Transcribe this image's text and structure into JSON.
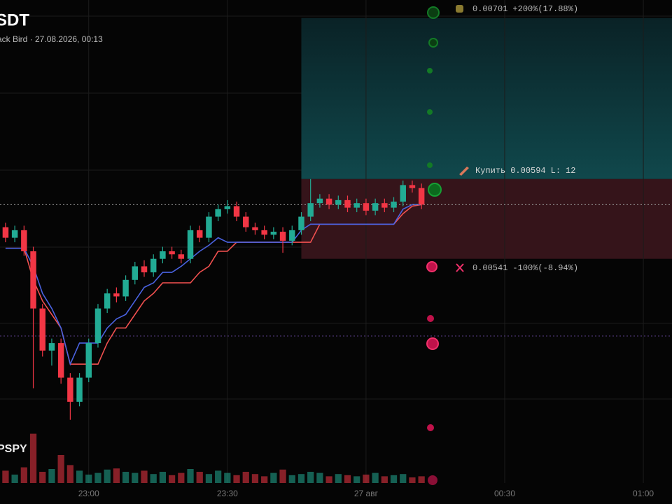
{
  "chart_data": {
    "type": "candlestick",
    "title": "SDT",
    "subtitle": "ack Bird · 27.08.2026, 00:13",
    "volume_label": "PSPY",
    "xlim": [
      -0.6,
      72.1
    ],
    "ylim": [
      0.00392,
      0.00713
    ],
    "xticks": [
      {
        "value": 9,
        "label": "23:00"
      },
      {
        "value": 24,
        "label": "23:30"
      },
      {
        "value": 39,
        "label": "27 авг"
      },
      {
        "value": 54,
        "label": "00:30"
      },
      {
        "value": 69,
        "label": "01:00"
      }
    ],
    "up_color": "#22ab94",
    "down_color": "#f23645",
    "open": [
      0.00562,
      0.00555,
      0.0056,
      0.00546,
      0.00508,
      0.0048,
      0.00485,
      0.00462,
      0.00446,
      0.00462,
      0.00485,
      0.00508,
      0.00518,
      0.00516,
      0.00527,
      0.00536,
      0.00532,
      0.00541,
      0.00546,
      0.00544,
      0.00541,
      0.0056,
      0.00555,
      0.00569,
      0.00574,
      0.00576,
      0.00569,
      0.00562,
      0.0056,
      0.00557,
      0.00559,
      0.00553,
      0.0056,
      0.00569,
      0.00578,
      0.00581,
      0.00577,
      0.0058,
      0.00575,
      0.00578,
      0.00573,
      0.00578,
      0.00575,
      0.00579,
      0.0059,
      0.00588
    ],
    "high": [
      0.00565,
      0.00563,
      0.00563,
      0.00549,
      0.00511,
      0.00488,
      0.00488,
      0.00465,
      0.00465,
      0.00488,
      0.00511,
      0.00521,
      0.00522,
      0.0053,
      0.00539,
      0.0054,
      0.00544,
      0.00549,
      0.00549,
      0.00547,
      0.00563,
      0.00563,
      0.00572,
      0.00577,
      0.0058,
      0.00579,
      0.00572,
      0.00565,
      0.00563,
      0.00562,
      0.00562,
      0.00563,
      0.00572,
      0.00594,
      0.00584,
      0.00584,
      0.00583,
      0.00583,
      0.00581,
      0.00581,
      0.00581,
      0.00581,
      0.00582,
      0.00593,
      0.00593,
      0.00591
    ],
    "low": [
      0.00552,
      0.00552,
      0.00543,
      0.00455,
      0.00476,
      0.0047,
      0.00458,
      0.00434,
      0.00443,
      0.00459,
      0.00482,
      0.00505,
      0.00512,
      0.00513,
      0.00524,
      0.00529,
      0.00529,
      0.00538,
      0.00541,
      0.00538,
      0.00538,
      0.00552,
      0.00552,
      0.00566,
      0.00571,
      0.00566,
      0.00559,
      0.00557,
      0.00554,
      0.00554,
      0.00545,
      0.0055,
      0.00557,
      0.00566,
      0.00575,
      0.00574,
      0.00574,
      0.00572,
      0.00572,
      0.0057,
      0.0057,
      0.00572,
      0.00572,
      0.00576,
      0.00585,
      0.00574
    ],
    "close": [
      0.00555,
      0.0056,
      0.00546,
      0.00508,
      0.0048,
      0.00485,
      0.00462,
      0.00446,
      0.00462,
      0.00485,
      0.00508,
      0.00518,
      0.00516,
      0.00527,
      0.00536,
      0.00532,
      0.00541,
      0.00546,
      0.00544,
      0.00541,
      0.0056,
      0.00555,
      0.00569,
      0.00574,
      0.00576,
      0.00569,
      0.00562,
      0.0056,
      0.00557,
      0.00559,
      0.00553,
      0.0056,
      0.00569,
      0.00578,
      0.00581,
      0.00577,
      0.0058,
      0.00575,
      0.00578,
      0.00573,
      0.00578,
      0.00575,
      0.00579,
      0.0059,
      0.00588,
      0.00577
    ],
    "volume": [
      22,
      15,
      28,
      88,
      20,
      25,
      50,
      32,
      22,
      15,
      18,
      24,
      26,
      20,
      18,
      22,
      16,
      20,
      14,
      18,
      25,
      20,
      16,
      22,
      18,
      14,
      20,
      16,
      12,
      18,
      24,
      14,
      16,
      20,
      18,
      12,
      16,
      14,
      12,
      15,
      18,
      12,
      14,
      16,
      10,
      12
    ],
    "volume_lim": [
      0,
      100
    ],
    "lines": [
      {
        "color": "#f0504f",
        "values": [
          0.00548,
          0.00548,
          0.00548,
          0.00527,
          0.00513,
          0.00504,
          0.00495,
          0.00471,
          0.00471,
          0.00471,
          0.00471,
          0.00485,
          0.00495,
          0.00495,
          0.00504,
          0.00513,
          0.00518,
          0.00525,
          0.00525,
          0.00525,
          0.00525,
          0.00532,
          0.00536,
          0.00546,
          0.00546,
          0.00552,
          0.00552,
          0.00552,
          0.00552,
          0.00552,
          0.00552,
          0.00552,
          0.00552,
          0.00552,
          0.00564,
          0.00564,
          0.00564,
          0.00564,
          0.00564,
          0.00564,
          0.00564,
          0.00564,
          0.00564,
          0.00571,
          0.00576,
          0.00577
        ]
      },
      {
        "color": "#4a62e0",
        "values": [
          0.00548,
          0.00548,
          0.00548,
          0.00536,
          0.00518,
          0.00508,
          0.00495,
          0.00471,
          0.00485,
          0.00485,
          0.00485,
          0.00495,
          0.00501,
          0.00504,
          0.00513,
          0.00522,
          0.00525,
          0.00532,
          0.00532,
          0.00536,
          0.00541,
          0.00546,
          0.0055,
          0.00555,
          0.00552,
          0.00552,
          0.00552,
          0.00552,
          0.00552,
          0.00552,
          0.00552,
          0.00552,
          0.0056,
          0.00564,
          0.00564,
          0.00564,
          0.00564,
          0.00564,
          0.00564,
          0.00564,
          0.00564,
          0.00564,
          0.00564,
          0.00574,
          0.00577,
          0.00577
        ]
      }
    ],
    "position": {
      "start": 32,
      "label": "Купить",
      "entry": 0.00594,
      "leverage_label": "L:",
      "leverage": 12,
      "target": 0.00701,
      "target_pct_label": "+200%(17.88%)",
      "stop": 0.00541,
      "stop_pct_label": "-100%(-8.94%)"
    }
  }
}
